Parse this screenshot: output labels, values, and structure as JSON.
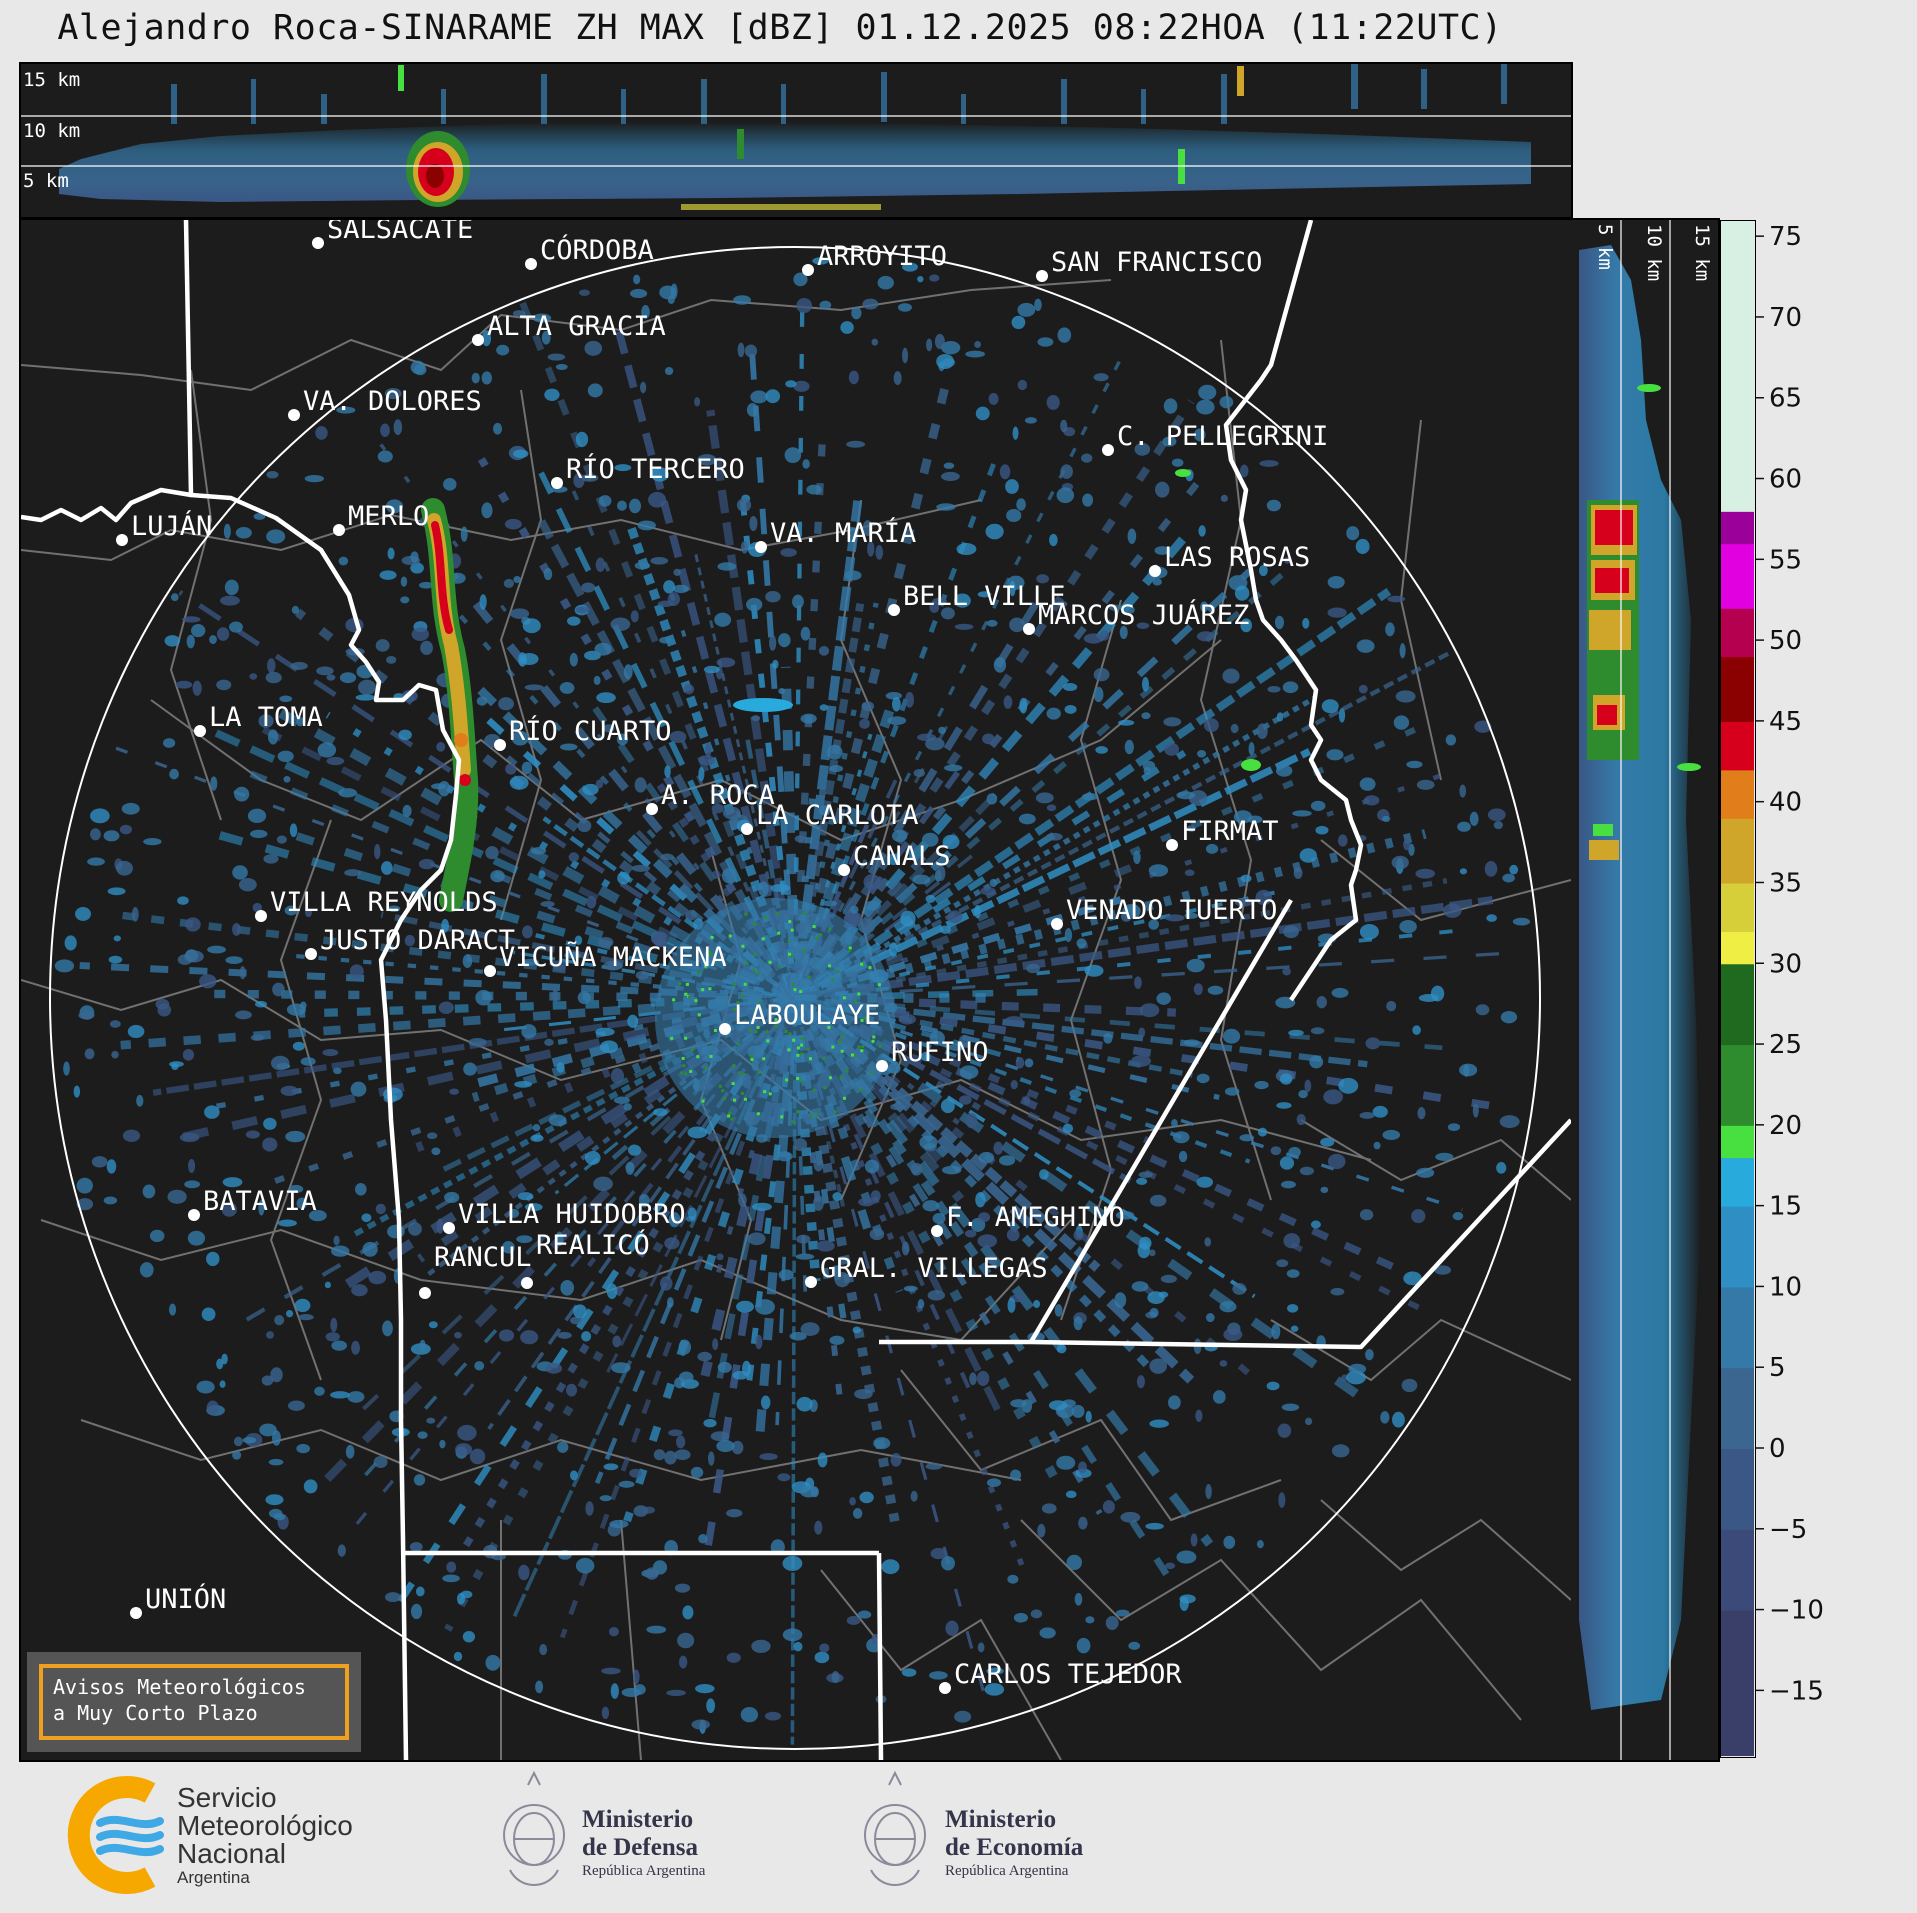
{
  "title": "Alejandro Roca-SINARAME ZH MAX [dBZ] 01.12.2025 08:22HOA (11:22UTC)",
  "top_panel": {
    "height_labels": [
      "15 km",
      "10 km",
      "5 km"
    ]
  },
  "side_panel": {
    "height_labels": [
      "5 km",
      "10 km",
      "15 km"
    ]
  },
  "cities": [
    {
      "name": "SALSACATE"
    },
    {
      "name": "CÓRDOBA"
    },
    {
      "name": "ARROYITO"
    },
    {
      "name": "SAN FRANCISCO"
    },
    {
      "name": "ALTA GRACIA"
    },
    {
      "name": "VA. DOLORES"
    },
    {
      "name": "C. PELLEGRINI"
    },
    {
      "name": "RÍO TERCERO"
    },
    {
      "name": "MERLO"
    },
    {
      "name": "LUJÁN"
    },
    {
      "name": "VA. MARÍA"
    },
    {
      "name": "LAS ROSAS"
    },
    {
      "name": "BELL VILLE"
    },
    {
      "name": "MARCOS JUÁREZ"
    },
    {
      "name": "LA TOMA"
    },
    {
      "name": "RÍO CUARTO"
    },
    {
      "name": "A. ROCA"
    },
    {
      "name": "LA CARLOTA"
    },
    {
      "name": "FIRMAT"
    },
    {
      "name": "CANALS"
    },
    {
      "name": "VILLA REYNOLDS"
    },
    {
      "name": "VENADO TUERTO"
    },
    {
      "name": "JUSTO DARACT"
    },
    {
      "name": "VICUÑA MACKENA"
    },
    {
      "name": "LABOULAYE"
    },
    {
      "name": "RUFINO"
    },
    {
      "name": "BATAVIA"
    },
    {
      "name": "VILLA HUIDOBRO"
    },
    {
      "name": "F. AMEGHINO"
    },
    {
      "name": "RANCUL"
    },
    {
      "name": "REALICÓ"
    },
    {
      "name": "GRAL. VILLEGAS"
    },
    {
      "name": "UNIÓN"
    },
    {
      "name": "CARLOS TEJEDOR"
    }
  ],
  "warning_box": {
    "line1": "Avisos Meteorológicos",
    "line2": "a Muy Corto Plazo"
  },
  "colorbar": {
    "unit": "dBZ",
    "min": -19,
    "max": 76,
    "ticks": [
      75,
      70,
      65,
      60,
      55,
      50,
      45,
      40,
      35,
      30,
      25,
      20,
      15,
      10,
      5,
      0,
      -5,
      -10,
      -15
    ],
    "tick_labels": [
      "75",
      "70",
      "65",
      "60",
      "55",
      "50",
      "45",
      "40",
      "35",
      "30",
      "25",
      "20",
      "15",
      "10",
      "5",
      "0",
      "−5",
      "−10",
      "−15"
    ],
    "colors": [
      {
        "from": 58,
        "to": 76,
        "color": "#d8efe3"
      },
      {
        "from": 56,
        "to": 58,
        "color": "#9b009b"
      },
      {
        "from": 52,
        "to": 56,
        "color": "#e000e0"
      },
      {
        "from": 49,
        "to": 52,
        "color": "#b4004e"
      },
      {
        "from": 45,
        "to": 49,
        "color": "#8b0000"
      },
      {
        "from": 42,
        "to": 45,
        "color": "#d6001c"
      },
      {
        "from": 39,
        "to": 42,
        "color": "#e27d1c"
      },
      {
        "from": 35,
        "to": 39,
        "color": "#cfa52a"
      },
      {
        "from": 32,
        "to": 35,
        "color": "#d6cf3a"
      },
      {
        "from": 30,
        "to": 32,
        "color": "#eeee44"
      },
      {
        "from": 25,
        "to": 30,
        "color": "#1f6a1f"
      },
      {
        "from": 20,
        "to": 25,
        "color": "#2e8b2e"
      },
      {
        "from": 18,
        "to": 20,
        "color": "#48e040"
      },
      {
        "from": 15,
        "to": 18,
        "color": "#28aadc"
      },
      {
        "from": 10,
        "to": 15,
        "color": "#2f8fc4"
      },
      {
        "from": 5,
        "to": 10,
        "color": "#3579a8"
      },
      {
        "from": 0,
        "to": 5,
        "color": "#3a6690"
      },
      {
        "from": -5,
        "to": 0,
        "color": "#3a5785"
      },
      {
        "from": -10,
        "to": -5,
        "color": "#3b4a78"
      },
      {
        "from": -19,
        "to": -10,
        "color": "#3a3f6a"
      }
    ]
  },
  "footer": {
    "smn_line1": "Servicio",
    "smn_line2": "Meteorológico",
    "smn_line3": "Nacional",
    "smn_line4": "Argentina",
    "defensa_line1": "Ministerio",
    "defensa_line2": "de Defensa",
    "defensa_line3": "República Argentina",
    "economia_line1": "Ministerio",
    "economia_line2": "de Economía",
    "economia_line3": "República Argentina"
  }
}
